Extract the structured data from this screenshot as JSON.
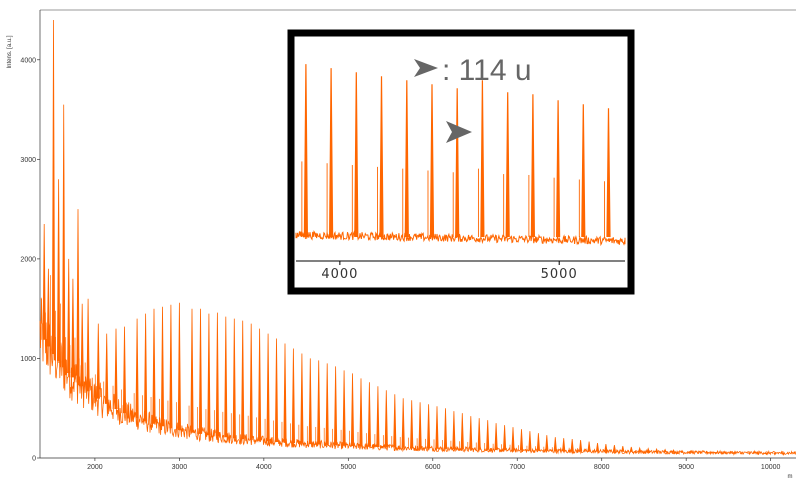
{
  "chart_data": [
    {
      "type": "line",
      "ylabel": "Intens. [a.u.]",
      "xlabel": "m",
      "xlim": [
        1350,
        10300
      ],
      "ylim": [
        0,
        4500
      ],
      "x_ticks": [
        "2000",
        "3000",
        "4000",
        "5000",
        "6000",
        "7000",
        "8000",
        "9000",
        "10000"
      ],
      "y_ticks": [
        "0",
        "1000",
        "2000",
        "3000",
        "4000"
      ],
      "grid": false,
      "series": [
        {
          "description_of_values": "peak apex intensities of the periodic peak series",
          "x": [
            1400,
            1450,
            1510,
            1570,
            1630,
            1690,
            1740,
            1800,
            1850,
            1920,
            2040,
            2140,
            2250,
            2350,
            2500,
            2600,
            2700,
            2800,
            2900,
            3000,
            3150,
            3250,
            3350,
            3450,
            3550,
            3650,
            3750,
            3850,
            3950,
            4050,
            4150,
            4250,
            4350,
            4450,
            4550,
            4650,
            4750,
            4850,
            4950,
            5050,
            5150,
            5250,
            5350,
            5450,
            5550,
            5650,
            5750,
            5850,
            5950,
            6050,
            6150,
            6250,
            6350,
            6450,
            6550,
            6650,
            6750,
            6850,
            6950,
            7050,
            7150,
            7250,
            7350,
            7450,
            7550,
            7650,
            7750,
            7850,
            7950,
            8050,
            8150,
            8250,
            8350,
            8450,
            8550,
            8650,
            8750,
            8850,
            8950,
            9050,
            9150,
            9250,
            9350,
            9450,
            9550,
            9650,
            9750,
            9850,
            9950,
            10050,
            10150
          ],
          "values": [
            2350,
            1900,
            4400,
            2800,
            3550,
            2000,
            1800,
            2500,
            1550,
            1600,
            1350,
            1250,
            1300,
            1320,
            1400,
            1450,
            1500,
            1520,
            1540,
            1560,
            1500,
            1500,
            1450,
            1460,
            1420,
            1400,
            1380,
            1350,
            1300,
            1250,
            1200,
            1150,
            1100,
            1050,
            1000,
            980,
            950,
            920,
            880,
            850,
            800,
            760,
            720,
            680,
            640,
            600,
            580,
            560,
            540,
            520,
            500,
            470,
            450,
            420,
            400,
            380,
            350,
            330,
            310,
            290,
            270,
            250,
            230,
            210,
            200,
            190,
            180,
            165,
            150,
            140,
            130,
            120,
            110,
            100,
            95,
            90,
            85,
            80,
            75,
            70,
            65,
            60,
            55,
            50,
            45,
            40,
            38,
            36,
            34,
            32,
            30
          ]
        }
      ],
      "color": "#ff6600"
    },
    {
      "type": "line",
      "inset": true,
      "xlim": [
        3800,
        5300
      ],
      "x_ticks": [
        "4000",
        "5000"
      ],
      "annotation": ": 114 u",
      "series": [
        {
          "description_of_values": "inset peak apex heights (relative, 0-1)",
          "x": [
            3845,
            3960,
            4075,
            4190,
            4305,
            4420,
            4535,
            4650,
            4765,
            4880,
            4995,
            5110,
            5225
          ],
          "values": [
            0.88,
            0.86,
            0.84,
            0.82,
            0.8,
            0.78,
            0.76,
            0.8,
            0.74,
            0.73,
            0.7,
            0.68,
            0.66
          ]
        }
      ],
      "color": "#ff6600",
      "frame_color": "#000000",
      "arrow_color": "#666666"
    }
  ]
}
